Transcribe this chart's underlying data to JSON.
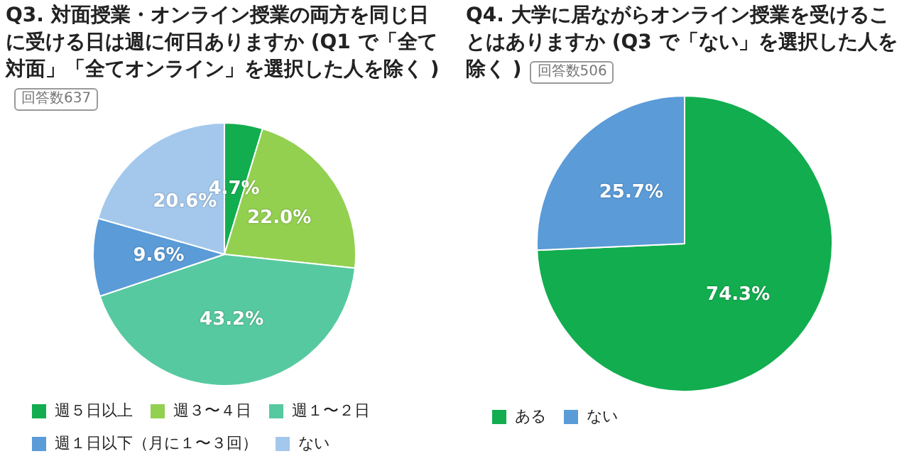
{
  "chart_data": [
    {
      "type": "pie",
      "title": "Q3. 対面授業・オンライン授業の両方を同じ日に受ける日は週に何日ありますか (Q1 で「全て対面」「全てオンライン」を選択した人を除く )",
      "annotations": [
        "回答数637"
      ],
      "categories": [
        "週５日以上",
        "週３〜４日",
        "週１〜２日",
        "週１日以下（月に１〜３回）",
        "ない"
      ],
      "values": [
        4.7,
        22.0,
        43.2,
        9.6,
        20.6
      ],
      "colors": [
        "#12ad4f",
        "#93d050",
        "#57c9a0",
        "#5a9bd8",
        "#a3c8ec"
      ],
      "value_labels": [
        "4.7%",
        "22.0%",
        "43.2%",
        "9.6%",
        "20.6%"
      ],
      "legend": "bottom"
    },
    {
      "type": "pie",
      "title": "Q4. 大学に居ながらオンライン授業を受けることはありますか (Q3 で「ない」を選択した人を除く )",
      "annotations": [
        "回答数506"
      ],
      "categories": [
        "ある",
        "ない"
      ],
      "values": [
        74.3,
        25.7
      ],
      "colors": [
        "#12ad4f",
        "#5a9bd8"
      ],
      "value_labels": [
        "74.3%",
        "25.7%"
      ],
      "legend": "bottom"
    }
  ]
}
